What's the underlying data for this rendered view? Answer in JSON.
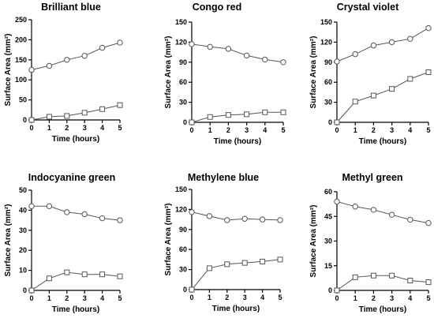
{
  "chart_data": [
    {
      "type": "line",
      "title": "Brilliant blue",
      "xlabel": "Time (hours)",
      "ylabel": "Surface Area (mm²)",
      "x": [
        0,
        1,
        2,
        3,
        4,
        5
      ],
      "xlim": [
        0,
        5
      ],
      "ylim": [
        0,
        250
      ],
      "yticks": [
        0,
        50,
        100,
        150,
        200,
        250
      ],
      "grid": false,
      "legend": "none",
      "series": [
        {
          "marker": "circle",
          "values": [
            125,
            135,
            150,
            160,
            180,
            193
          ]
        },
        {
          "marker": "square",
          "values": [
            0,
            8,
            10,
            18,
            27,
            37
          ]
        }
      ]
    },
    {
      "type": "line",
      "title": "Congo red",
      "xlabel": "Time (hours)",
      "ylabel": "Surface Area (mm²)",
      "x": [
        0,
        1,
        2,
        3,
        4,
        5
      ],
      "xlim": [
        0,
        5
      ],
      "ylim": [
        0,
        150
      ],
      "yticks": [
        0,
        30,
        60,
        90,
        120,
        150
      ],
      "grid": false,
      "legend": "none",
      "series": [
        {
          "marker": "circle",
          "values": [
            117,
            113,
            110,
            100,
            94,
            90
          ]
        },
        {
          "marker": "square",
          "values": [
            0,
            8,
            11,
            12,
            15,
            15
          ]
        }
      ]
    },
    {
      "type": "line",
      "title": "Crystal violet",
      "xlabel": "Time (hours)",
      "ylabel": "Surface Area (mm²)",
      "x": [
        0,
        1,
        2,
        3,
        4,
        5
      ],
      "xlim": [
        0,
        5
      ],
      "ylim": [
        0,
        150
      ],
      "yticks": [
        0,
        30,
        60,
        90,
        120,
        150
      ],
      "grid": false,
      "legend": "none",
      "series": [
        {
          "marker": "circle",
          "values": [
            91,
            102,
            115,
            120,
            125,
            141
          ]
        },
        {
          "marker": "square",
          "values": [
            0,
            31,
            40,
            50,
            65,
            75
          ]
        }
      ]
    },
    {
      "type": "line",
      "title": "Indocyanine green",
      "xlabel": "Time (hours)",
      "ylabel": "Surface Area (mm²)",
      "x": [
        0,
        1,
        2,
        3,
        4,
        5
      ],
      "xlim": [
        0,
        5
      ],
      "ylim": [
        0,
        50
      ],
      "yticks": [
        0,
        10,
        20,
        30,
        40,
        50
      ],
      "grid": false,
      "legend": "none",
      "series": [
        {
          "marker": "circle",
          "values": [
            42,
            42,
            39,
            38,
            36,
            35
          ]
        },
        {
          "marker": "square",
          "values": [
            0,
            6,
            9,
            8,
            8,
            7
          ]
        }
      ]
    },
    {
      "type": "line",
      "title": "Methylene blue",
      "xlabel": "Time (hours)",
      "ylabel": "Surface Area (mm²)",
      "x": [
        0,
        1,
        2,
        3,
        4,
        5
      ],
      "xlim": [
        0,
        5
      ],
      "ylim": [
        0,
        150
      ],
      "yticks": [
        0,
        30,
        60,
        90,
        120,
        150
      ],
      "grid": false,
      "legend": "none",
      "series": [
        {
          "marker": "circle",
          "values": [
            116,
            110,
            104,
            106,
            105,
            104
          ]
        },
        {
          "marker": "square",
          "values": [
            0,
            32,
            38,
            40,
            42,
            45
          ]
        }
      ]
    },
    {
      "type": "line",
      "title": "Methyl green",
      "xlabel": "Time (hours)",
      "ylabel": "Surface Area (mm²)",
      "x": [
        0,
        1,
        2,
        3,
        4,
        5
      ],
      "xlim": [
        0,
        5
      ],
      "ylim": [
        0,
        60
      ],
      "yticks": [
        0,
        15,
        30,
        45,
        60
      ],
      "grid": false,
      "legend": "none",
      "series": [
        {
          "marker": "circle",
          "values": [
            54,
            51,
            49,
            46,
            43,
            41
          ]
        },
        {
          "marker": "square",
          "values": [
            0,
            8,
            9,
            9,
            6,
            5
          ]
        }
      ]
    }
  ]
}
